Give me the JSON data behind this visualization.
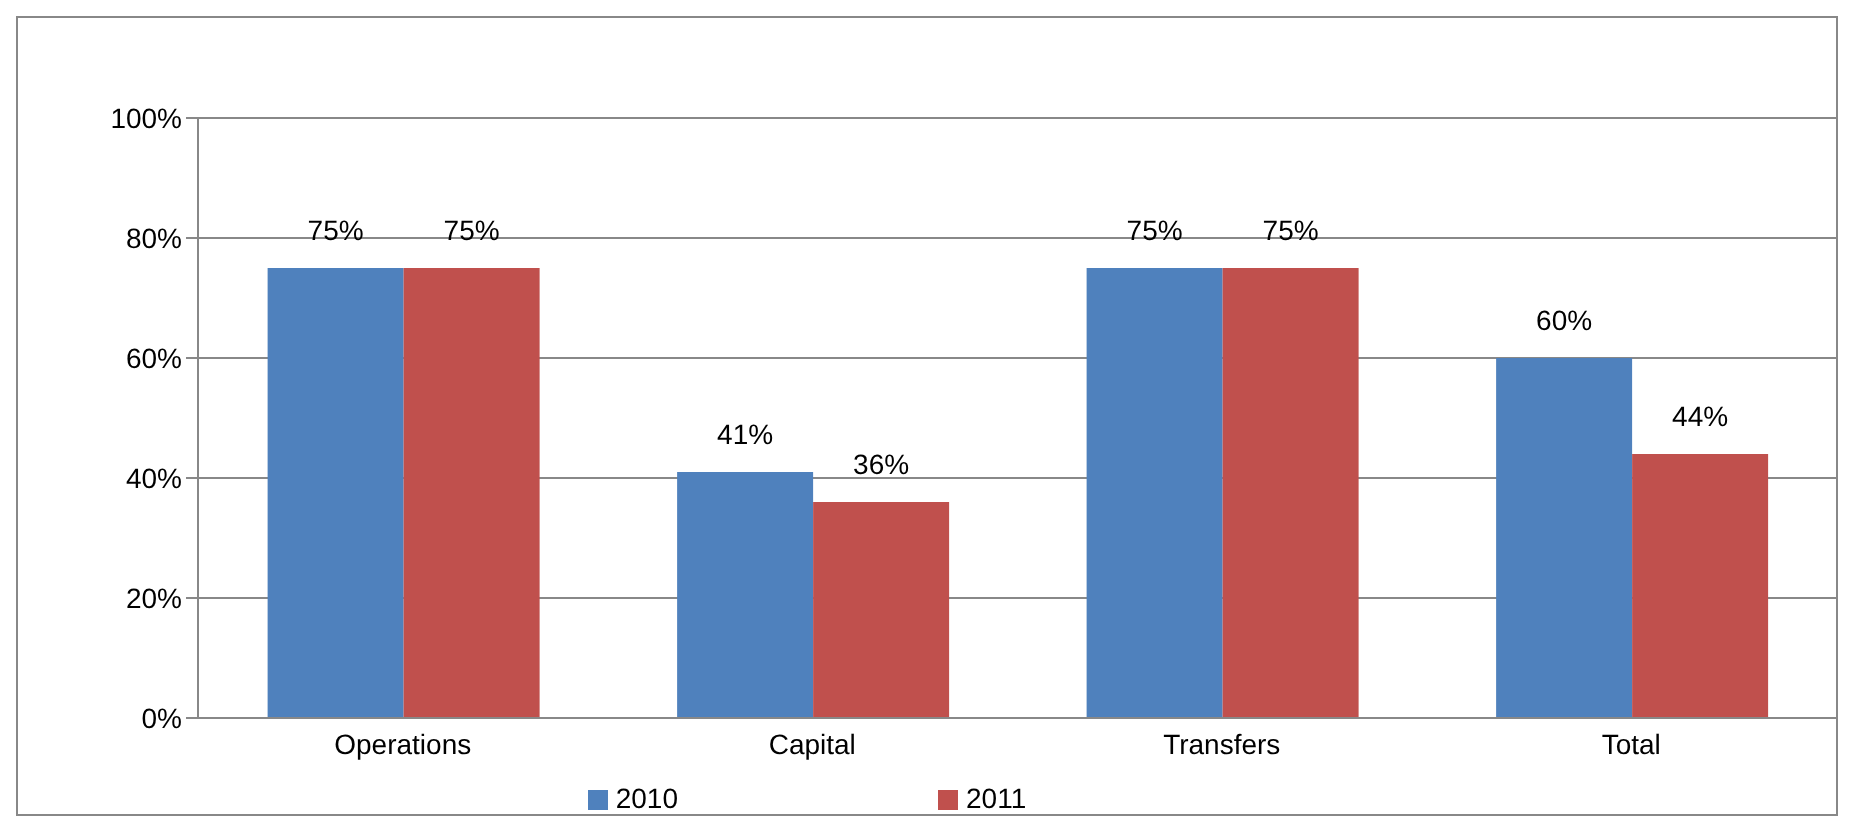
{
  "chart_data": {
    "type": "bar",
    "categories": [
      "Operations",
      "Capital",
      "Transfers",
      "Total"
    ],
    "series": [
      {
        "name": "2010",
        "color": "#4f81bd",
        "values": [
          75,
          41,
          75,
          60
        ]
      },
      {
        "name": "2011",
        "color": "#c0504d",
        "values": [
          75,
          36,
          75,
          44
        ]
      }
    ],
    "ylim": [
      0,
      100
    ],
    "yticks": [
      {
        "value": 0,
        "label": "0%"
      },
      {
        "value": 20,
        "label": "20%"
      },
      {
        "value": 40,
        "label": "40%"
      },
      {
        "value": 60,
        "label": "60%"
      },
      {
        "value": 80,
        "label": "80%"
      },
      {
        "value": 100,
        "label": "100%"
      }
    ],
    "value_labels": [
      [
        "75%",
        "41%",
        "75%",
        "60%"
      ],
      [
        "75%",
        "36%",
        "75%",
        "44%"
      ]
    ],
    "grid": "y",
    "legend": "bottom"
  }
}
